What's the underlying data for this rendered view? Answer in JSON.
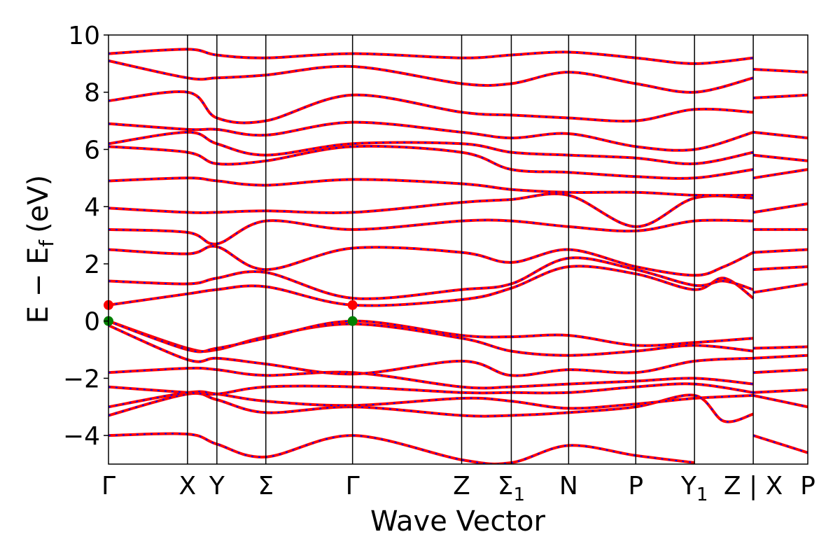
{
  "chart_data": {
    "type": "line",
    "xlabel": "Wave Vector",
    "ylabel_main": "E − E",
    "ylabel_sub": "f",
    "ylabel_unit": "(eV)",
    "ylim": [
      -5,
      10
    ],
    "yticks": [
      -4,
      -2,
      0,
      2,
      4,
      6,
      8,
      10
    ],
    "ytick_labels": [
      "−4",
      "−2",
      "0",
      "2",
      "4",
      "6",
      "8",
      "10"
    ],
    "kpath": [
      {
        "label": "Γ",
        "sub": "",
        "x": 0.0
      },
      {
        "label": "X",
        "sub": "",
        "x": 0.113
      },
      {
        "label": "Y",
        "sub": "",
        "x": 0.155
      },
      {
        "label": "Σ",
        "sub": "",
        "x": 0.225
      },
      {
        "label": "Γ",
        "sub": "",
        "x": 0.349
      },
      {
        "label": "Z",
        "sub": "",
        "x": 0.505
      },
      {
        "label": "Σ",
        "sub": "1",
        "x": 0.576
      },
      {
        "label": "N",
        "sub": "",
        "x": 0.658
      },
      {
        "label": "P",
        "sub": "",
        "x": 0.754
      },
      {
        "label": "Y",
        "sub": "1",
        "x": 0.838
      },
      {
        "label": "Z | X",
        "sub": "",
        "x": 0.922
      },
      {
        "label": "P",
        "sub": "",
        "x": 1.0
      }
    ],
    "legend": "none",
    "grid": false,
    "colors": {
      "band_solid": "#ff0000",
      "band_dotted": "#0000ff",
      "cbm_marker": "#ff0000",
      "vbm_marker": "#008000"
    },
    "markers": [
      {
        "name": "cbm",
        "x": 0.0,
        "y": 0.56
      },
      {
        "name": "cbm",
        "x": 0.349,
        "y": 0.56
      },
      {
        "name": "vbm",
        "x": 0.0,
        "y": 0.0
      },
      {
        "name": "vbm",
        "x": 0.349,
        "y": 0.0
      }
    ],
    "series": [
      {
        "values": [
          [
            0.0,
            -4.0
          ],
          [
            0.113,
            -3.95
          ],
          [
            0.155,
            -4.3
          ],
          [
            0.225,
            -4.75
          ],
          [
            0.349,
            -4.0
          ],
          [
            0.505,
            -4.85
          ],
          [
            0.576,
            -4.95
          ],
          [
            0.658,
            -4.35
          ],
          [
            0.754,
            -4.7
          ],
          [
            0.838,
            -4.95
          ]
        ]
      },
      {
        "values": [
          [
            0.922,
            -4.0
          ],
          [
            1.0,
            -4.6
          ]
        ]
      },
      {
        "values": [
          [
            0.0,
            -3.3
          ],
          [
            0.113,
            -2.55
          ],
          [
            0.155,
            -2.75
          ],
          [
            0.225,
            -3.2
          ],
          [
            0.349,
            -3.0
          ],
          [
            0.505,
            -3.3
          ],
          [
            0.576,
            -3.3
          ],
          [
            0.658,
            -3.2
          ],
          [
            0.754,
            -3.0
          ],
          [
            0.838,
            -2.6
          ],
          [
            0.88,
            -3.5
          ],
          [
            0.922,
            -3.25
          ]
        ]
      },
      {
        "values": [
          [
            0.0,
            -3.0
          ],
          [
            0.113,
            -2.5
          ],
          [
            0.155,
            -2.55
          ],
          [
            0.225,
            -2.8
          ],
          [
            0.349,
            -2.95
          ],
          [
            0.505,
            -2.7
          ],
          [
            0.576,
            -2.8
          ],
          [
            0.658,
            -3.05
          ],
          [
            0.754,
            -2.9
          ],
          [
            0.838,
            -2.7
          ],
          [
            0.922,
            -2.6
          ]
        ]
      },
      {
        "values": [
          [
            0.0,
            -2.3
          ],
          [
            0.113,
            -2.5
          ],
          [
            0.155,
            -2.55
          ],
          [
            0.225,
            -2.3
          ],
          [
            0.349,
            -2.3
          ],
          [
            0.505,
            -2.5
          ],
          [
            0.576,
            -2.5
          ],
          [
            0.658,
            -2.5
          ],
          [
            0.754,
            -2.3
          ],
          [
            0.838,
            -2.2
          ],
          [
            0.922,
            -2.5
          ]
        ]
      },
      {
        "values": [
          [
            0.0,
            -1.8
          ],
          [
            0.113,
            -1.65
          ],
          [
            0.155,
            -1.7
          ],
          [
            0.225,
            -1.9
          ],
          [
            0.349,
            -1.8
          ],
          [
            0.505,
            -2.3
          ],
          [
            0.576,
            -2.3
          ],
          [
            0.658,
            -2.2
          ],
          [
            0.754,
            -2.1
          ],
          [
            0.838,
            -2.0
          ],
          [
            0.922,
            -2.2
          ]
        ]
      },
      {
        "values": [
          [
            0.0,
            -0.15
          ],
          [
            0.113,
            -1.35
          ],
          [
            0.155,
            -1.3
          ],
          [
            0.225,
            -1.5
          ],
          [
            0.349,
            -1.85
          ],
          [
            0.505,
            -1.4
          ],
          [
            0.576,
            -1.9
          ],
          [
            0.658,
            -1.7
          ],
          [
            0.754,
            -1.8
          ],
          [
            0.838,
            -1.4
          ],
          [
            0.922,
            -1.3
          ]
        ]
      },
      {
        "values": [
          [
            0.0,
            0.0
          ],
          [
            0.113,
            -0.95
          ],
          [
            0.155,
            -1.0
          ],
          [
            0.225,
            -0.55
          ],
          [
            0.349,
            -0.1
          ],
          [
            0.505,
            -0.6
          ],
          [
            0.576,
            -1.05
          ],
          [
            0.658,
            -1.2
          ],
          [
            0.754,
            -1.05
          ],
          [
            0.838,
            -0.85
          ],
          [
            0.922,
            -1.05
          ]
        ]
      },
      {
        "values": [
          [
            0.0,
            0.0
          ],
          [
            0.113,
            -1.0
          ],
          [
            0.155,
            -0.95
          ],
          [
            0.225,
            -0.6
          ],
          [
            0.349,
            0.0
          ],
          [
            0.505,
            -0.5
          ],
          [
            0.576,
            -0.55
          ],
          [
            0.658,
            -0.5
          ],
          [
            0.754,
            -0.85
          ],
          [
            0.838,
            -0.75
          ],
          [
            0.922,
            -0.6
          ]
        ]
      },
      {
        "values": [
          [
            0.0,
            0.56
          ],
          [
            0.113,
            0.95
          ],
          [
            0.155,
            1.1
          ],
          [
            0.225,
            1.2
          ],
          [
            0.349,
            0.56
          ],
          [
            0.505,
            0.75
          ],
          [
            0.576,
            1.15
          ],
          [
            0.658,
            1.9
          ],
          [
            0.754,
            1.65
          ],
          [
            0.838,
            1.1
          ],
          [
            0.88,
            1.5
          ],
          [
            0.922,
            0.8
          ]
        ]
      },
      {
        "values": [
          [
            0.0,
            1.4
          ],
          [
            0.113,
            1.3
          ],
          [
            0.155,
            1.5
          ],
          [
            0.225,
            1.7
          ],
          [
            0.349,
            0.8
          ],
          [
            0.505,
            1.1
          ],
          [
            0.576,
            1.3
          ],
          [
            0.658,
            2.2
          ],
          [
            0.754,
            1.8
          ],
          [
            0.838,
            1.25
          ],
          [
            0.88,
            1.4
          ],
          [
            0.922,
            1.1
          ]
        ]
      },
      {
        "values": [
          [
            0.0,
            2.5
          ],
          [
            0.113,
            2.35
          ],
          [
            0.155,
            2.6
          ],
          [
            0.225,
            1.8
          ],
          [
            0.349,
            2.55
          ],
          [
            0.505,
            2.4
          ],
          [
            0.576,
            2.05
          ],
          [
            0.658,
            2.5
          ],
          [
            0.754,
            1.9
          ],
          [
            0.838,
            1.6
          ],
          [
            0.88,
            1.9
          ],
          [
            0.922,
            2.4
          ]
        ]
      },
      {
        "values": [
          [
            0.0,
            3.2
          ],
          [
            0.113,
            3.1
          ],
          [
            0.155,
            2.7
          ],
          [
            0.225,
            3.5
          ],
          [
            0.349,
            3.2
          ],
          [
            0.505,
            3.5
          ],
          [
            0.576,
            3.5
          ],
          [
            0.658,
            3.3
          ],
          [
            0.754,
            3.15
          ],
          [
            0.838,
            3.5
          ],
          [
            0.922,
            3.5
          ]
        ]
      },
      {
        "values": [
          [
            0.0,
            3.95
          ],
          [
            0.113,
            3.8
          ],
          [
            0.155,
            3.8
          ],
          [
            0.225,
            3.85
          ],
          [
            0.349,
            3.8
          ],
          [
            0.505,
            4.15
          ],
          [
            0.576,
            4.25
          ],
          [
            0.658,
            4.4
          ],
          [
            0.754,
            3.3
          ],
          [
            0.838,
            4.3
          ],
          [
            0.922,
            4.3
          ]
        ]
      },
      {
        "values": [
          [
            0.0,
            4.9
          ],
          [
            0.113,
            5.0
          ],
          [
            0.155,
            4.9
          ],
          [
            0.225,
            4.75
          ],
          [
            0.349,
            4.95
          ],
          [
            0.505,
            4.8
          ],
          [
            0.576,
            4.6
          ],
          [
            0.658,
            4.5
          ],
          [
            0.754,
            4.5
          ],
          [
            0.838,
            4.4
          ],
          [
            0.922,
            4.4
          ]
        ]
      },
      {
        "values": [
          [
            0.0,
            6.1
          ],
          [
            0.113,
            5.9
          ],
          [
            0.155,
            5.5
          ],
          [
            0.225,
            5.6
          ],
          [
            0.349,
            6.1
          ],
          [
            0.505,
            5.9
          ],
          [
            0.576,
            5.3
          ],
          [
            0.658,
            5.2
          ],
          [
            0.754,
            5.05
          ],
          [
            0.838,
            5.0
          ],
          [
            0.922,
            5.3
          ]
        ]
      },
      {
        "values": [
          [
            0.0,
            6.2
          ],
          [
            0.113,
            6.6
          ],
          [
            0.155,
            6.2
          ],
          [
            0.225,
            5.8
          ],
          [
            0.349,
            6.2
          ],
          [
            0.505,
            6.2
          ],
          [
            0.576,
            5.9
          ],
          [
            0.658,
            5.8
          ],
          [
            0.754,
            5.7
          ],
          [
            0.838,
            5.5
          ],
          [
            0.922,
            5.9
          ]
        ]
      },
      {
        "values": [
          [
            0.0,
            6.9
          ],
          [
            0.113,
            6.7
          ],
          [
            0.155,
            6.7
          ],
          [
            0.225,
            6.5
          ],
          [
            0.349,
            6.95
          ],
          [
            0.505,
            6.6
          ],
          [
            0.576,
            6.4
          ],
          [
            0.658,
            6.55
          ],
          [
            0.754,
            6.1
          ],
          [
            0.838,
            6.0
          ],
          [
            0.922,
            6.6
          ]
        ]
      },
      {
        "values": [
          [
            0.0,
            7.7
          ],
          [
            0.113,
            8.0
          ],
          [
            0.155,
            7.1
          ],
          [
            0.225,
            7.0
          ],
          [
            0.349,
            7.9
          ],
          [
            0.505,
            7.3
          ],
          [
            0.576,
            7.2
          ],
          [
            0.658,
            7.1
          ],
          [
            0.754,
            7.0
          ],
          [
            0.838,
            7.4
          ],
          [
            0.922,
            7.3
          ]
        ]
      },
      {
        "values": [
          [
            0.0,
            9.1
          ],
          [
            0.113,
            8.5
          ],
          [
            0.155,
            8.5
          ],
          [
            0.225,
            8.6
          ],
          [
            0.349,
            8.9
          ],
          [
            0.505,
            8.3
          ],
          [
            0.576,
            8.3
          ],
          [
            0.658,
            8.7
          ],
          [
            0.754,
            8.3
          ],
          [
            0.838,
            8.0
          ],
          [
            0.922,
            8.5
          ]
        ]
      },
      {
        "values": [
          [
            0.0,
            9.35
          ],
          [
            0.113,
            9.5
          ],
          [
            0.155,
            9.3
          ],
          [
            0.225,
            9.2
          ],
          [
            0.349,
            9.35
          ],
          [
            0.505,
            9.2
          ],
          [
            0.576,
            9.3
          ],
          [
            0.658,
            9.4
          ],
          [
            0.754,
            9.2
          ],
          [
            0.838,
            9.0
          ],
          [
            0.922,
            9.2
          ]
        ]
      },
      {
        "values": [
          [
            0.922,
            -0.95
          ],
          [
            1.0,
            -0.9
          ]
        ]
      },
      {
        "values": [
          [
            0.922,
            -1.3
          ],
          [
            1.0,
            -1.2
          ]
        ]
      },
      {
        "values": [
          [
            0.922,
            -1.8
          ],
          [
            1.0,
            -1.7
          ]
        ]
      },
      {
        "values": [
          [
            0.922,
            -2.5
          ],
          [
            1.0,
            -2.4
          ]
        ]
      },
      {
        "values": [
          [
            0.922,
            -2.6
          ],
          [
            1.0,
            -3.0
          ]
        ]
      },
      {
        "values": [
          [
            0.922,
            1.0
          ],
          [
            1.0,
            1.3
          ]
        ]
      },
      {
        "values": [
          [
            0.922,
            1.8
          ],
          [
            1.0,
            1.9
          ]
        ]
      },
      {
        "values": [
          [
            0.922,
            2.4
          ],
          [
            1.0,
            2.5
          ]
        ]
      },
      {
        "values": [
          [
            0.922,
            3.2
          ],
          [
            1.0,
            3.2
          ]
        ]
      },
      {
        "values": [
          [
            0.922,
            3.8
          ],
          [
            1.0,
            4.1
          ]
        ]
      },
      {
        "values": [
          [
            0.922,
            5.0
          ],
          [
            1.0,
            5.3
          ]
        ]
      },
      {
        "values": [
          [
            0.922,
            5.8
          ],
          [
            1.0,
            5.6
          ]
        ]
      },
      {
        "values": [
          [
            0.922,
            6.6
          ],
          [
            1.0,
            6.4
          ]
        ]
      },
      {
        "values": [
          [
            0.922,
            7.8
          ],
          [
            1.0,
            7.9
          ]
        ]
      },
      {
        "values": [
          [
            0.922,
            8.8
          ],
          [
            1.0,
            8.7
          ]
        ]
      }
    ]
  }
}
